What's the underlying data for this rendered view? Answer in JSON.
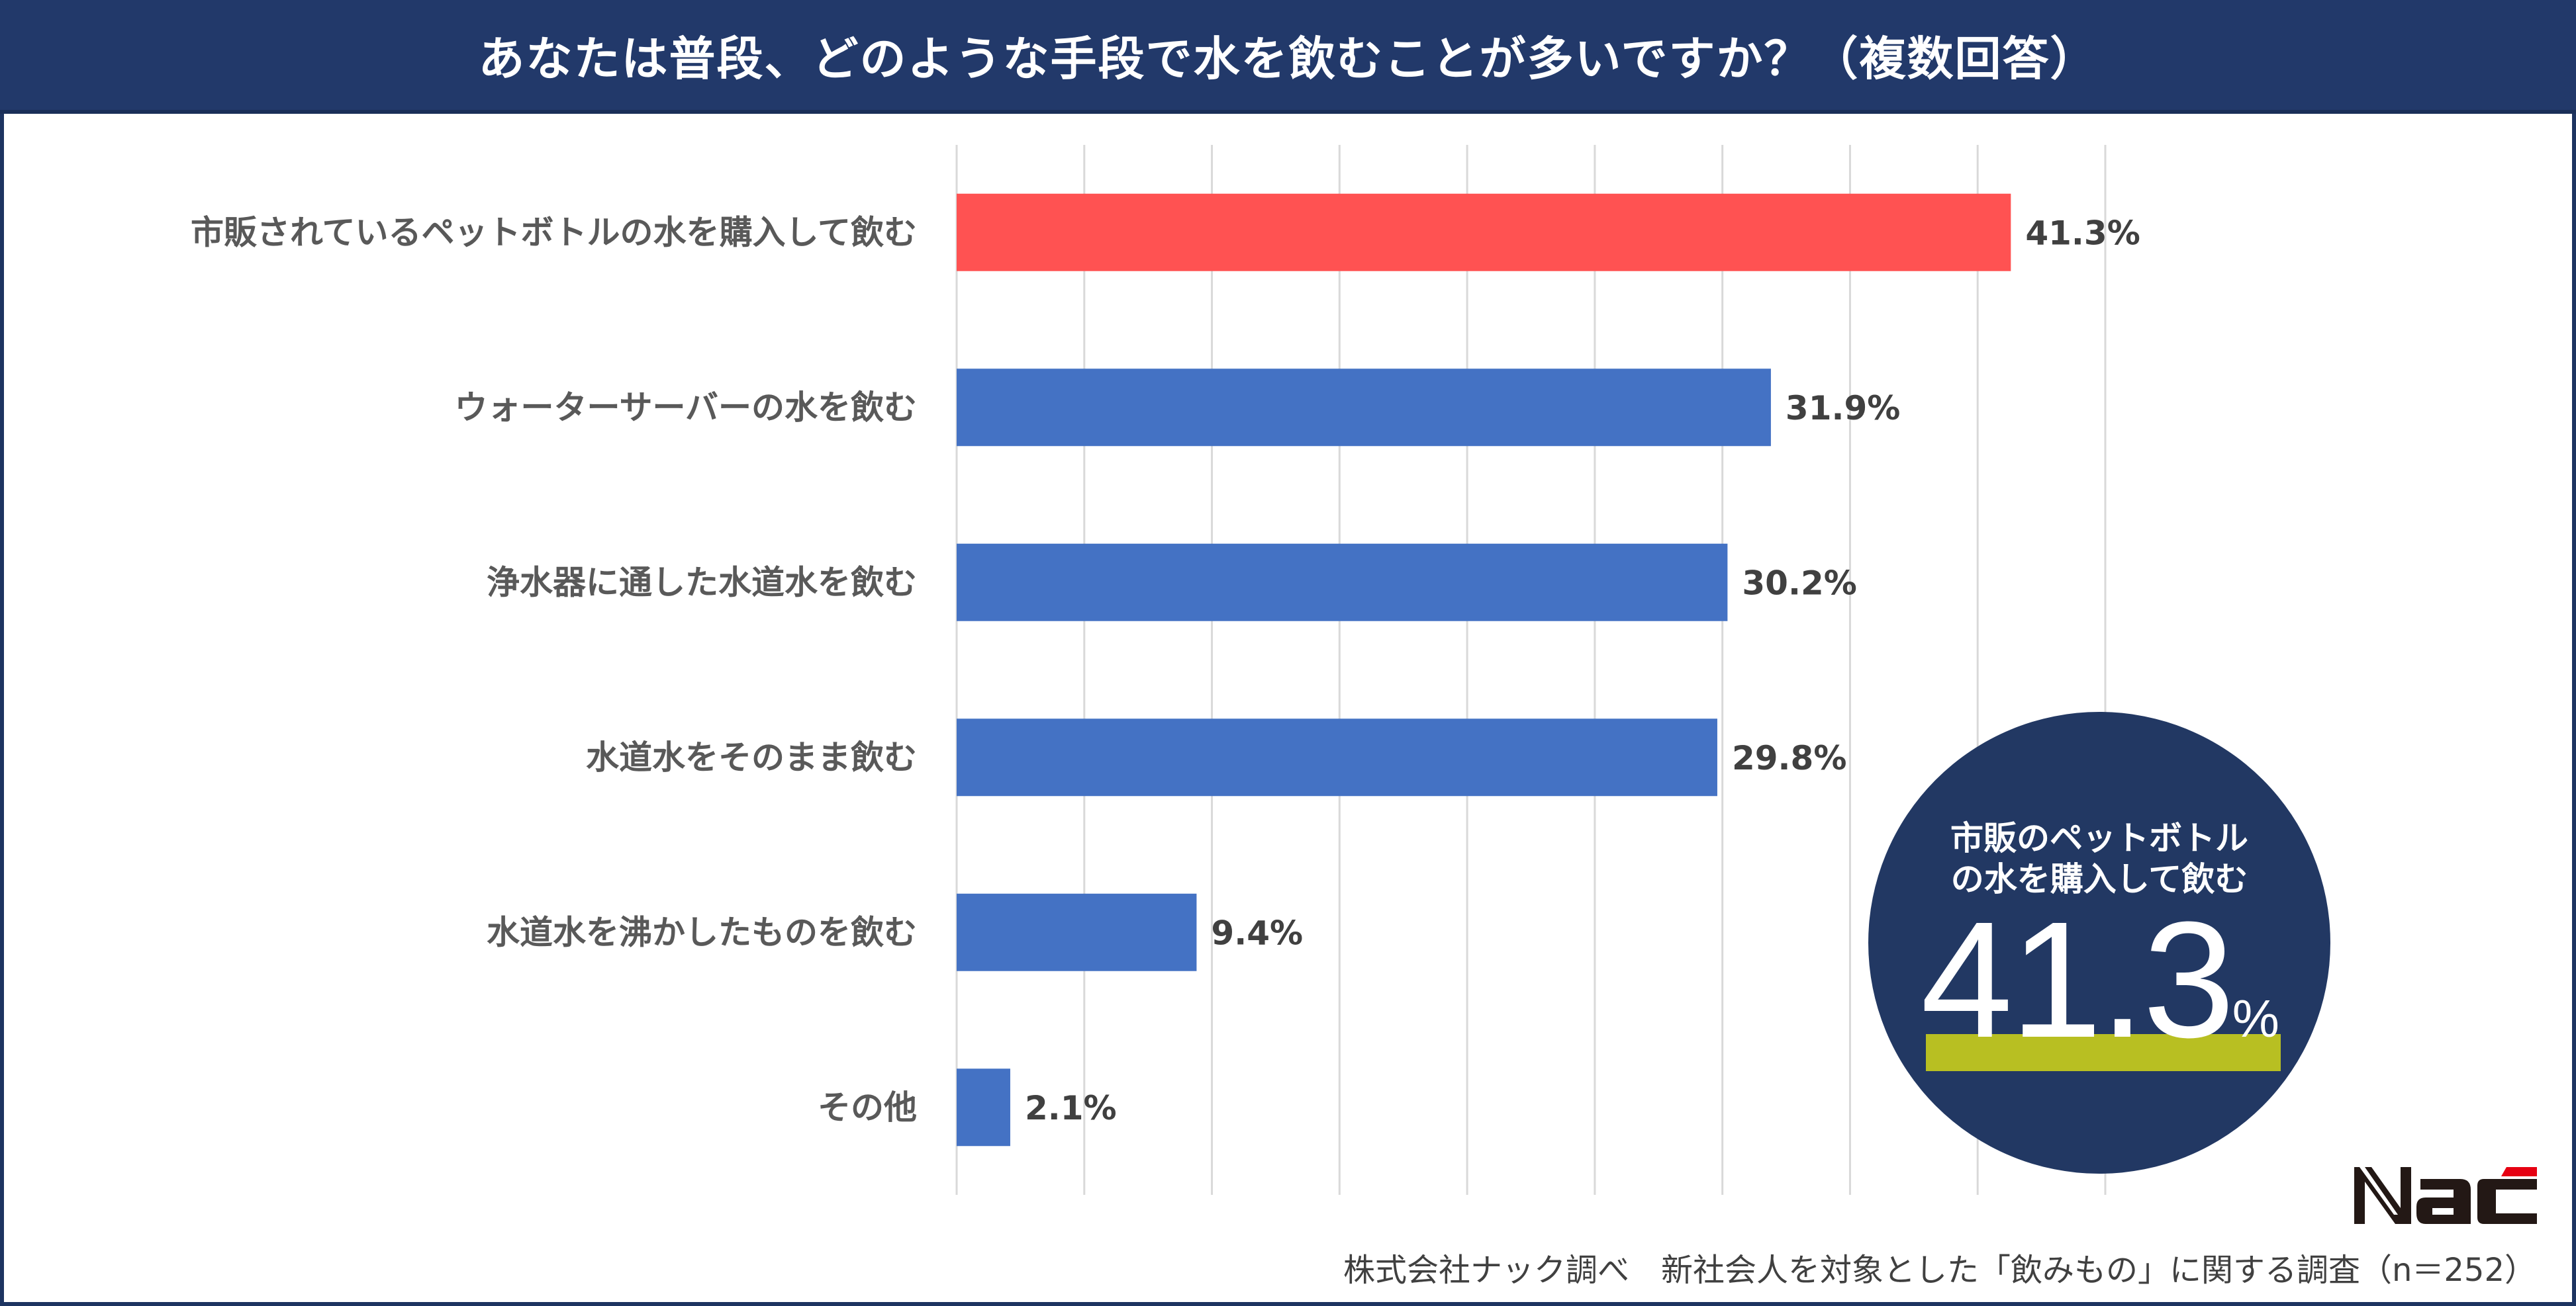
{
  "header": {
    "title": "あなたは普段、どのような手段で水を飲むことが多いですか？（複数回答）"
  },
  "chart_data": {
    "type": "bar",
    "orientation": "horizontal",
    "title": "あなたは普段、どのような手段で水を飲むことが多いですか？（複数回答）",
    "categories": [
      "市販されているペットボトルの水を購入して飲む",
      "ウォーターサーバーの水を飲む",
      "浄水器に通した水道水を飲む",
      "水道水をそのまま飲む",
      "水道水を沸かしたものを飲む",
      "その他"
    ],
    "values": [
      41.3,
      31.9,
      30.2,
      29.8,
      9.4,
      2.1
    ],
    "labels": [
      "41.3%",
      "31.9%",
      "30.2%",
      "29.8%",
      "9.4%",
      "2.1%"
    ],
    "unit": "%",
    "xlim": [
      0,
      45
    ],
    "grid_step": 5,
    "grid": true,
    "highlight_color": "#ff5252",
    "bar_color": "#4472c4"
  },
  "callout": {
    "line1": "市販のペットボトル",
    "line2": "の水を購入して飲む",
    "value": "41.3",
    "unit": "%"
  },
  "logo": {
    "text": "Nac"
  },
  "footer": {
    "source": "株式会社ナック調べ　新社会人を対象とした「飲みもの」に関する調査（n＝252）"
  }
}
